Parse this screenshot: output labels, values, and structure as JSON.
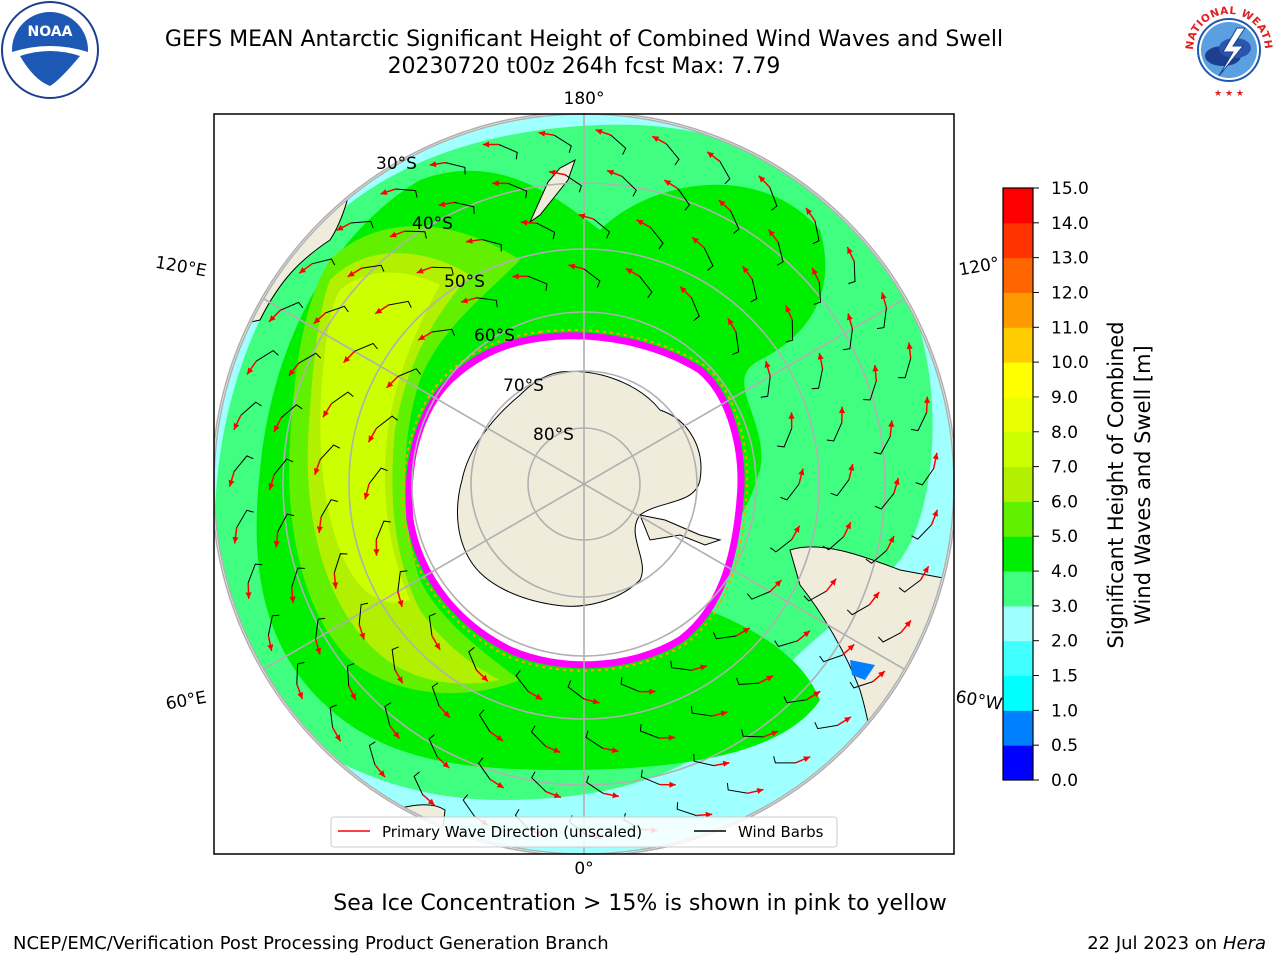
{
  "title": {
    "line1": "GEFS MEAN Antarctic Significant Height of Combined Wind Waves and Swell",
    "line2": "20230720 t00z 264h fcst   Max: 7.79"
  },
  "map": {
    "projection": "south-polar-stereographic",
    "lon_labels": [
      "180°",
      "120°E",
      "120°",
      "60°E",
      "60°W",
      "0°"
    ],
    "lat_labels": [
      "30°S",
      "40°S",
      "50°S",
      "60°S",
      "70°S",
      "80°S"
    ],
    "land_color": "#efecdc",
    "ice_edge_colors": [
      "#ff00ff",
      "#ffa500",
      "#ffff00"
    ]
  },
  "legend": {
    "primary_wave": "Primary Wave Direction (unscaled)",
    "wind_barbs": "Wind Barbs",
    "arrow_color": "#ff0000",
    "barb_color": "#000000"
  },
  "colorbar": {
    "label_line1": "Significant Height of Combined",
    "label_line2": "Wind Waves and Swell [m]",
    "levels": [
      0.0,
      0.5,
      1.0,
      1.5,
      2.0,
      3.0,
      4.0,
      5.0,
      6.0,
      7.0,
      8.0,
      9.0,
      10.0,
      11.0,
      12.0,
      13.0,
      14.0,
      15.0
    ],
    "tick_labels": [
      "0.0",
      "0.5",
      "1.0",
      "1.5",
      "2.0",
      "3.0",
      "4.0",
      "5.0",
      "6.0",
      "7.0",
      "8.0",
      "9.0",
      "10.0",
      "11.0",
      "12.0",
      "13.0",
      "14.0",
      "15.0"
    ],
    "colors": [
      "#0000ff",
      "#0080ff",
      "#00ffff",
      "#40ffff",
      "#a0ffff",
      "#40ff80",
      "#00ee00",
      "#60f000",
      "#b0f000",
      "#ccff00",
      "#e8ff00",
      "#ffff00",
      "#ffcc00",
      "#ff9900",
      "#ff6600",
      "#ff3300",
      "#ff0000"
    ]
  },
  "note": "Sea Ice Concentration > 15% is shown in pink to yellow",
  "footer": {
    "left": "NCEP/EMC/Verification Post Processing Product Generation Branch",
    "date": "22 Jul 2023 on ",
    "system": "Hera"
  },
  "logos": {
    "noaa_text": "NOAA",
    "nws_text": "NATIONAL WEATHER SERVICE"
  }
}
